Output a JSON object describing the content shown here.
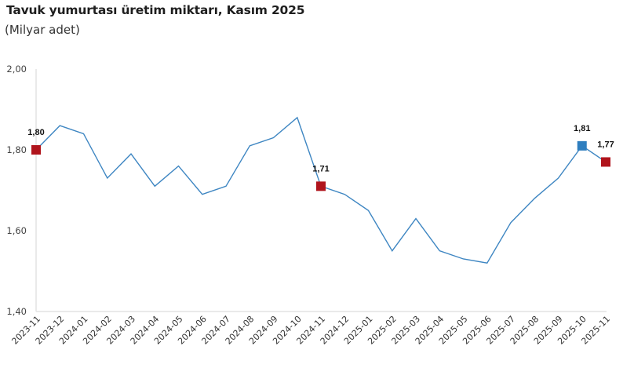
{
  "header": {
    "title": "Tavuk yumurtası üretim miktarı, Kasım 2025",
    "subtitle": "(Milyar adet)"
  },
  "colors": {
    "line": "#3E86C2",
    "marker_highlight_red": "#B0141C",
    "marker_highlight_blue": "#2E7EBF",
    "axis": "#e3e3e3"
  },
  "chart_data": {
    "type": "line",
    "title": "Tavuk yumurtası üretim miktarı, Kasım 2025",
    "subtitle": "(Milyar adet)",
    "xlabel": "",
    "ylabel": "",
    "ylim": [
      1.4,
      2.0
    ],
    "yticks": [
      "1,40",
      "1,60",
      "1,80",
      "2,00"
    ],
    "ytick_values": [
      1.4,
      1.6,
      1.8,
      2.0
    ],
    "grid": false,
    "legend": "none",
    "categories": [
      "2023-11",
      "2023-12",
      "2024-01",
      "2024-02",
      "2024-03",
      "2024-04",
      "2024-05",
      "2024-06",
      "2024-07",
      "2024-08",
      "2024-09",
      "2024-10",
      "2024-11",
      "2024-12",
      "2025-01",
      "2025-02",
      "2025-03",
      "2025-04",
      "2025-05",
      "2025-06",
      "2025-07",
      "2025-08",
      "2025-09",
      "2025-10",
      "2025-11"
    ],
    "series": [
      {
        "name": "Tavuk yumurtası üretim miktarı",
        "values": [
          1.8,
          1.86,
          1.84,
          1.73,
          1.79,
          1.71,
          1.76,
          1.69,
          1.71,
          1.81,
          1.83,
          1.88,
          1.71,
          1.69,
          1.65,
          1.55,
          1.63,
          1.55,
          1.53,
          1.52,
          1.62,
          1.68,
          1.73,
          1.81,
          1.77
        ]
      }
    ],
    "annotations": [
      {
        "category": "2023-11",
        "label": "1,80",
        "marker": "red-square"
      },
      {
        "category": "2024-11",
        "label": "1,71",
        "marker": "red-square"
      },
      {
        "category": "2025-10",
        "label": "1,81",
        "marker": "blue-square"
      },
      {
        "category": "2025-11",
        "label": "1,77",
        "marker": "red-square"
      }
    ]
  }
}
